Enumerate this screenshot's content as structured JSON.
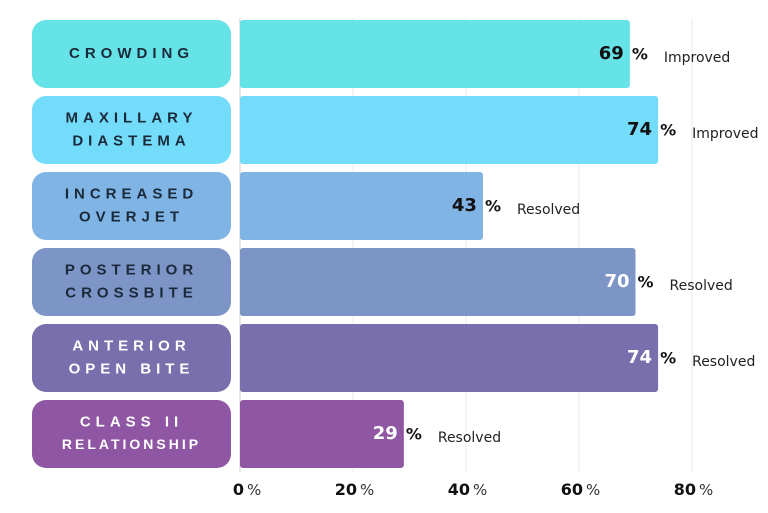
{
  "chart_data": {
    "type": "bar",
    "orientation": "horizontal",
    "categories": [
      [
        "CROWDING"
      ],
      [
        "MAXILLARY",
        "DIASTEMA"
      ],
      [
        "INCREASED",
        "OVERJET"
      ],
      [
        "POSTERIOR",
        "CROSSBITE"
      ],
      [
        "ANTERIOR",
        "OPEN BITE"
      ],
      [
        "CLASS II",
        "RELATIONSHIP"
      ]
    ],
    "values": [
      69,
      74,
      43,
      70,
      74,
      29
    ],
    "value_suffix": "%",
    "status_labels": [
      "Improved",
      "Improved",
      "Resolved",
      "Resolved",
      "Resolved",
      "Resolved"
    ],
    "colors": [
      "#66e3e6",
      "#73dcfa",
      "#7fb4e4",
      "#7d94c7",
      "#7a6fad",
      "#8e56a3"
    ],
    "value_label_colors": [
      "#111111",
      "#111111",
      "#111111",
      "#ffffff",
      "#ffffff",
      "#ffffff"
    ],
    "category_text_colors": [
      "#1a2a3a",
      "#1a2a3a",
      "#1a2a3a",
      "#1a2a3a",
      "#ffffff",
      "#ffffff"
    ],
    "xlim": [
      0,
      80
    ],
    "xticks": [
      0,
      20,
      40,
      60,
      80
    ],
    "xtick_suffix": "%",
    "grid": true
  }
}
